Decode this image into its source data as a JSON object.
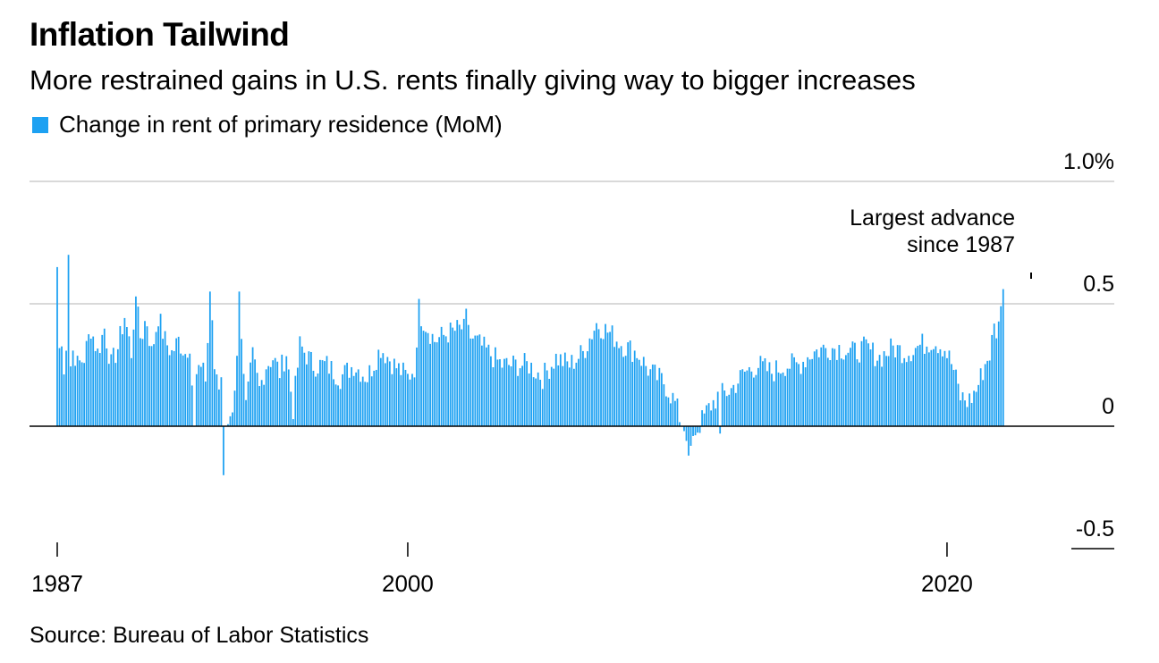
{
  "header": {
    "title": "Inflation Tailwind",
    "subtitle": "More restrained gains in U.S. rents finally giving way to bigger increases"
  },
  "legend": {
    "label": "Change in rent of primary residence (MoM)",
    "color": "#1da1f2"
  },
  "footer": {
    "source": "Source: Bureau of Labor Statistics"
  },
  "annotation": {
    "line1": "Largest advance",
    "line2": "since 1987"
  },
  "chart_data": {
    "type": "bar",
    "title": "Inflation Tailwind",
    "subtitle": "More restrained gains in U.S. rents finally giving way to bigger increases",
    "series_name": "Change in rent of primary residence (MoM)",
    "unit": "%",
    "start": "1987-01",
    "frequency": "monthly",
    "ylim": [
      -0.5,
      1.0
    ],
    "y_ticks": [
      {
        "value": 1.0,
        "label": "1.0%"
      },
      {
        "value": 0.5,
        "label": "0.5"
      },
      {
        "value": 0.0,
        "label": "0"
      },
      {
        "value": -0.5,
        "label": "-0.5"
      }
    ],
    "x_ticks": [
      {
        "year": 1987,
        "label": "1987"
      },
      {
        "year": 2000,
        "label": "2000"
      },
      {
        "year": 2020,
        "label": "2020"
      }
    ],
    "grid": true,
    "annotation": "Largest advance since 1987",
    "anchors": [
      [
        1987.0,
        0.65
      ],
      [
        1987.08,
        0.32
      ],
      [
        1987.17,
        0.32
      ],
      [
        1987.25,
        0.25
      ],
      [
        1987.33,
        0.32
      ],
      [
        1987.42,
        0.7
      ],
      [
        1987.5,
        0.25
      ],
      [
        1987.6,
        0.32
      ],
      [
        1987.75,
        0.25
      ],
      [
        1988.0,
        0.28
      ],
      [
        1988.25,
        0.4
      ],
      [
        1988.5,
        0.3
      ],
      [
        1988.75,
        0.4
      ],
      [
        1989.0,
        0.25
      ],
      [
        1989.25,
        0.32
      ],
      [
        1989.5,
        0.45
      ],
      [
        1989.75,
        0.3
      ],
      [
        1989.9,
        0.53
      ],
      [
        1990.1,
        0.35
      ],
      [
        1990.3,
        0.45
      ],
      [
        1990.5,
        0.3
      ],
      [
        1990.75,
        0.45
      ],
      [
        1991.0,
        0.35
      ],
      [
        1991.25,
        0.3
      ],
      [
        1991.5,
        0.35
      ],
      [
        1991.75,
        0.3
      ],
      [
        1991.95,
        0.35
      ],
      [
        1992.05,
        0.0
      ],
      [
        1992.2,
        0.25
      ],
      [
        1992.5,
        0.2
      ],
      [
        1992.7,
        0.55
      ],
      [
        1992.85,
        0.2
      ],
      [
        1993.0,
        0.15
      ],
      [
        1993.1,
        0.2
      ],
      [
        1993.3,
        0.0
      ],
      [
        1993.5,
        0.08
      ],
      [
        1993.7,
        0.3
      ],
      [
        1993.75,
        0.55
      ],
      [
        1994.0,
        0.08
      ],
      [
        1994.25,
        0.28
      ],
      [
        1994.5,
        0.15
      ],
      [
        1994.75,
        0.25
      ],
      [
        1995.0,
        0.28
      ],
      [
        1995.25,
        0.22
      ],
      [
        1995.5,
        0.3
      ],
      [
        1995.75,
        0.07
      ],
      [
        1996.0,
        0.33
      ],
      [
        1996.5,
        0.25
      ],
      [
        1997.0,
        0.25
      ],
      [
        1997.5,
        0.2
      ],
      [
        1998.0,
        0.25
      ],
      [
        1998.5,
        0.2
      ],
      [
        1999.0,
        0.32
      ],
      [
        1999.5,
        0.25
      ],
      [
        2000.0,
        0.2
      ],
      [
        2000.3,
        0.25
      ],
      [
        2000.5,
        0.45
      ],
      [
        2001.0,
        0.35
      ],
      [
        2001.5,
        0.38
      ],
      [
        2002.0,
        0.4
      ],
      [
        2002.5,
        0.35
      ],
      [
        2003.0,
        0.3
      ],
      [
        2003.5,
        0.25
      ],
      [
        2004.0,
        0.25
      ],
      [
        2004.5,
        0.25
      ],
      [
        2005.0,
        0.2
      ],
      [
        2005.5,
        0.28
      ],
      [
        2006.0,
        0.25
      ],
      [
        2006.5,
        0.3
      ],
      [
        2007.0,
        0.42
      ],
      [
        2007.5,
        0.38
      ],
      [
        2008.0,
        0.33
      ],
      [
        2008.5,
        0.3
      ],
      [
        2009.0,
        0.22
      ],
      [
        2009.5,
        0.18
      ],
      [
        2009.9,
        0.1
      ],
      [
        2010.2,
        0.0
      ],
      [
        2010.5,
        -0.05
      ],
      [
        2010.8,
        0.0
      ],
      [
        2011.2,
        0.08
      ],
      [
        2011.5,
        0.12
      ],
      [
        2012.0,
        0.15
      ],
      [
        2012.5,
        0.22
      ],
      [
        2013.0,
        0.25
      ],
      [
        2013.5,
        0.22
      ],
      [
        2014.0,
        0.25
      ],
      [
        2014.5,
        0.25
      ],
      [
        2015.0,
        0.3
      ],
      [
        2015.5,
        0.32
      ],
      [
        2016.0,
        0.32
      ],
      [
        2016.5,
        0.3
      ],
      [
        2017.0,
        0.32
      ],
      [
        2017.5,
        0.28
      ],
      [
        2018.0,
        0.32
      ],
      [
        2018.5,
        0.3
      ],
      [
        2019.0,
        0.33
      ],
      [
        2019.5,
        0.35
      ],
      [
        2019.9,
        0.32
      ],
      [
        2020.2,
        0.25
      ],
      [
        2020.5,
        0.12
      ],
      [
        2020.8,
        0.1
      ],
      [
        2021.1,
        0.15
      ],
      [
        2021.4,
        0.25
      ],
      [
        2021.6,
        0.3
      ],
      [
        2021.75,
        0.4
      ],
      [
        2021.9,
        0.38
      ],
      [
        2022.0,
        0.53
      ],
      [
        2022.1,
        0.56
      ]
    ],
    "overrides": [
      [
        1987.0,
        0.65
      ],
      [
        1987.42,
        0.7
      ],
      [
        1989.92,
        0.53
      ],
      [
        1992.08,
        0.0
      ],
      [
        1992.25,
        0.25
      ],
      [
        1992.67,
        0.55
      ],
      [
        1993.0,
        0.15
      ],
      [
        1993.08,
        0.2
      ],
      [
        1993.17,
        -0.2
      ],
      [
        1993.25,
        0.0
      ],
      [
        1993.75,
        0.55
      ],
      [
        2000.42,
        0.52
      ],
      [
        2002.17,
        0.48
      ],
      [
        2010.17,
        0.0
      ],
      [
        2010.25,
        -0.02
      ],
      [
        2010.33,
        -0.06
      ],
      [
        2010.42,
        -0.12
      ],
      [
        2010.5,
        -0.08
      ],
      [
        2010.58,
        -0.04
      ],
      [
        2011.58,
        -0.03
      ],
      [
        2022.08,
        0.56
      ]
    ]
  }
}
